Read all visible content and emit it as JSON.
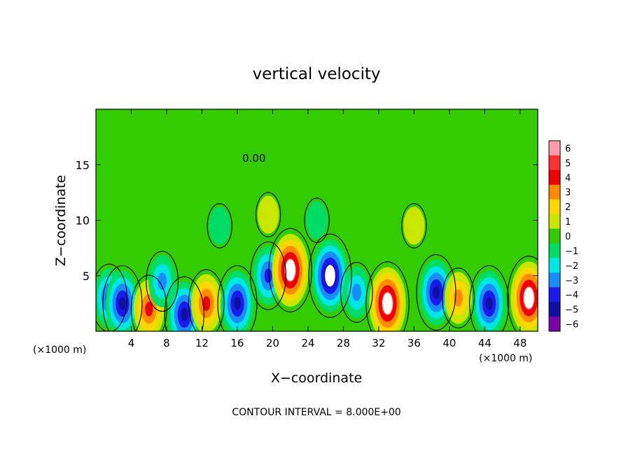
{
  "chart_data": {
    "type": "heatmap",
    "title": "vertical velocity",
    "xlabel": "X−coordinate",
    "ylabel": "Z−coordinate",
    "x_unit_left": "(×1000 m)",
    "x_unit_right": "(×1000 m)",
    "xlim": [
      0,
      50
    ],
    "ylim": [
      0,
      20
    ],
    "x_ticks": [
      4,
      8,
      12,
      16,
      20,
      24,
      28,
      32,
      36,
      40,
      44,
      48
    ],
    "x_tick_labels": [
      "4",
      "8",
      "12",
      "16",
      "20",
      "24",
      "28",
      "32",
      "36",
      "40",
      "44",
      "48"
    ],
    "y_ticks": [
      5,
      10,
      15
    ],
    "y_tick_labels": [
      "5",
      "10",
      "15"
    ],
    "contour_label": "0.00",
    "footer": "CONTOUR INTERVAL = 8.000E+00",
    "colorbar": {
      "levels": [
        6,
        5,
        4,
        3,
        2,
        1,
        0,
        -1,
        -2,
        -3,
        -4,
        -5,
        -6
      ],
      "labels": [
        "6",
        "5",
        "4",
        "3",
        "2",
        "1",
        "0",
        "−1",
        "−2",
        "−3",
        "−4",
        "−5",
        "−6"
      ],
      "colors": [
        "#ff9aa8",
        "#ff3030",
        "#ee0000",
        "#ff8c00",
        "#ffd700",
        "#c8e600",
        "#33cc00",
        "#00dd66",
        "#00e6e6",
        "#1a8cff",
        "#1a1aee",
        "#1010a0",
        "#7a00a8"
      ]
    },
    "background_value": 0,
    "features": [
      {
        "x": 1.5,
        "z": 3.0,
        "w": -4
      },
      {
        "x": 3.0,
        "z": 2.5,
        "w": -5
      },
      {
        "x": 6.0,
        "z": 2.0,
        "w": 4
      },
      {
        "x": 7.5,
        "z": 4.5,
        "w": -3
      },
      {
        "x": 10.0,
        "z": 1.5,
        "w": -5
      },
      {
        "x": 12.5,
        "z": 2.5,
        "w": 4
      },
      {
        "x": 16.0,
        "z": 2.5,
        "w": -5
      },
      {
        "x": 19.5,
        "z": 5.0,
        "w": -4
      },
      {
        "x": 22.0,
        "z": 5.5,
        "w": 6
      },
      {
        "x": 26.5,
        "z": 5.0,
        "w": -6
      },
      {
        "x": 29.5,
        "z": 3.5,
        "w": -3
      },
      {
        "x": 33.0,
        "z": 2.5,
        "w": 6
      },
      {
        "x": 38.5,
        "z": 3.5,
        "w": -5
      },
      {
        "x": 41.0,
        "z": 3.0,
        "w": 3
      },
      {
        "x": 44.5,
        "z": 2.5,
        "w": -5
      },
      {
        "x": 49.0,
        "z": 3.0,
        "w": 6
      },
      {
        "x": 25.0,
        "z": 10.0,
        "w": -1
      },
      {
        "x": 14.0,
        "z": 9.5,
        "w": -1
      },
      {
        "x": 36.0,
        "z": 9.5,
        "w": 1
      },
      {
        "x": 19.5,
        "z": 10.5,
        "w": 1
      }
    ]
  }
}
